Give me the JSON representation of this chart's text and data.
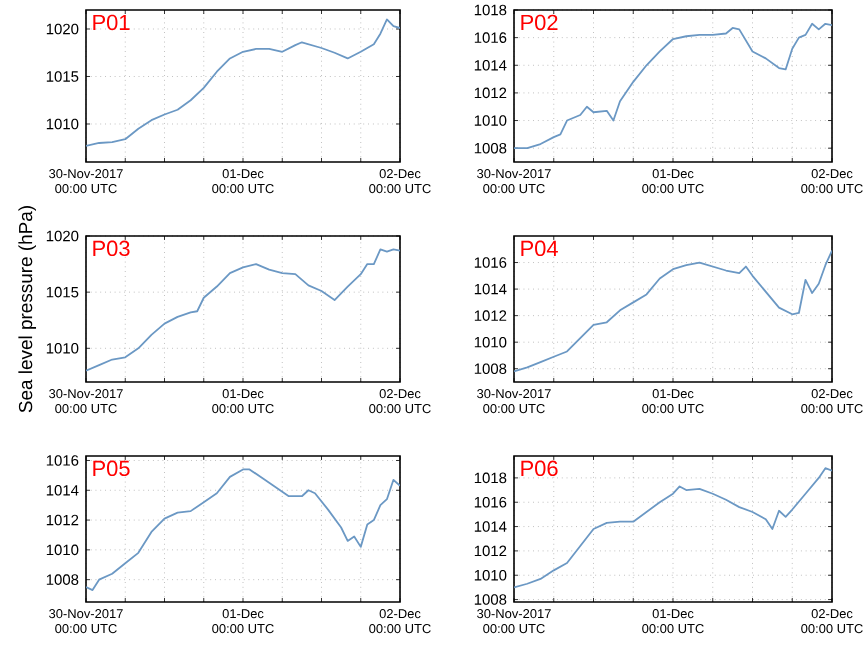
{
  "chart_data": [
    {
      "type": "line",
      "title": "P01",
      "xlim": [
        "2017-11-30T00:00",
        "2017-12-02T00:00"
      ],
      "ylim": [
        1006,
        1022
      ],
      "yticks": [
        1010,
        1015,
        1020
      ],
      "grid": true,
      "xticks": [
        {
          "value": "2017-11-30T00:00",
          "label": "30-Nov-2017\n00:00 UTC"
        },
        {
          "value": "2017-11-30T06:00",
          "label": null
        },
        {
          "value": "2017-11-30T12:00",
          "label": null
        },
        {
          "value": "2017-11-30T18:00",
          "label": null
        },
        {
          "value": "2017-12-01T00:00",
          "label": "01-Dec\n00:00 UTC"
        },
        {
          "value": "2017-12-01T06:00",
          "label": null
        },
        {
          "value": "2017-12-01T12:00",
          "label": null
        },
        {
          "value": "2017-12-01T18:00",
          "label": null
        },
        {
          "value": "2017-12-02T00:00",
          "label": "02-Dec\n00:00 UTC"
        }
      ],
      "x": [
        "2017-11-30T00:00",
        "2017-11-30T02:00",
        "2017-11-30T04:00",
        "2017-11-30T06:00",
        "2017-11-30T08:00",
        "2017-11-30T10:00",
        "2017-11-30T12:00",
        "2017-11-30T14:00",
        "2017-11-30T16:00",
        "2017-11-30T18:00",
        "2017-11-30T20:00",
        "2017-11-30T22:00",
        "2017-12-01T00:00",
        "2017-12-01T02:00",
        "2017-12-01T04:00",
        "2017-12-01T06:00",
        "2017-12-01T08:00",
        "2017-12-01T09:00",
        "2017-12-01T12:00",
        "2017-12-01T14:00",
        "2017-12-01T16:00",
        "2017-12-01T18:00",
        "2017-12-01T20:00",
        "2017-12-01T21:00",
        "2017-12-01T22:00",
        "2017-12-01T23:00",
        "2017-12-02T00:00"
      ],
      "series": [
        {
          "color": "#6b98c4",
          "values": [
            1007.7,
            1008.0,
            1008.1,
            1008.4,
            1009.5,
            1010.4,
            1011.0,
            1011.5,
            1012.5,
            1013.8,
            1015.5,
            1016.9,
            1017.6,
            1017.9,
            1017.9,
            1017.6,
            1018.3,
            1018.6,
            1018.0,
            1017.5,
            1016.9,
            1017.6,
            1018.4,
            1019.5,
            1021.0,
            1020.3,
            1020.1
          ]
        }
      ]
    },
    {
      "type": "line",
      "title": "P02",
      "xlim": [
        "2017-11-30T00:00",
        "2017-12-02T00:00"
      ],
      "ylim": [
        1007,
        1018
      ],
      "yticks": [
        1008,
        1010,
        1012,
        1014,
        1016,
        1018
      ],
      "grid": true,
      "xticks": [
        {
          "value": "2017-11-30T00:00",
          "label": "30-Nov-2017\n00:00 UTC"
        },
        {
          "value": "2017-11-30T06:00",
          "label": null
        },
        {
          "value": "2017-11-30T12:00",
          "label": null
        },
        {
          "value": "2017-11-30T18:00",
          "label": null
        },
        {
          "value": "2017-12-01T00:00",
          "label": "01-Dec\n00:00 UTC"
        },
        {
          "value": "2017-12-01T06:00",
          "label": null
        },
        {
          "value": "2017-12-01T12:00",
          "label": null
        },
        {
          "value": "2017-12-01T18:00",
          "label": null
        },
        {
          "value": "2017-12-02T00:00",
          "label": "02-Dec\n00:00 UTC"
        }
      ],
      "x": [
        "2017-11-30T00:00",
        "2017-11-30T02:00",
        "2017-11-30T04:00",
        "2017-11-30T06:00",
        "2017-11-30T07:00",
        "2017-11-30T08:00",
        "2017-11-30T10:00",
        "2017-11-30T11:00",
        "2017-11-30T12:00",
        "2017-11-30T14:00",
        "2017-11-30T15:00",
        "2017-11-30T16:00",
        "2017-11-30T18:00",
        "2017-11-30T20:00",
        "2017-11-30T22:00",
        "2017-12-01T00:00",
        "2017-12-01T02:00",
        "2017-12-01T04:00",
        "2017-12-01T06:00",
        "2017-12-01T08:00",
        "2017-12-01T09:00",
        "2017-12-01T10:00",
        "2017-12-01T12:00",
        "2017-12-01T14:00",
        "2017-12-01T16:00",
        "2017-12-01T17:00",
        "2017-12-01T18:00",
        "2017-12-01T19:00",
        "2017-12-01T20:00",
        "2017-12-01T21:00",
        "2017-12-01T22:00",
        "2017-12-01T23:00",
        "2017-12-02T00:00"
      ],
      "series": [
        {
          "color": "#6b98c4",
          "values": [
            1008.0,
            1008.0,
            1008.3,
            1008.8,
            1009.0,
            1010.0,
            1010.4,
            1011.0,
            1010.6,
            1010.7,
            1010.0,
            1011.4,
            1012.8,
            1014.0,
            1015.0,
            1015.9,
            1016.1,
            1016.2,
            1016.2,
            1016.3,
            1016.7,
            1016.6,
            1015.0,
            1014.5,
            1013.8,
            1013.7,
            1015.2,
            1016.0,
            1016.2,
            1017.0,
            1016.6,
            1017.0,
            1016.9
          ]
        }
      ]
    },
    {
      "type": "line",
      "title": "P03",
      "ylabel": "Sea level pressure (hPa)",
      "xlim": [
        "2017-11-30T00:00",
        "2017-12-02T00:00"
      ],
      "ylim": [
        1007,
        1020
      ],
      "yticks": [
        1010,
        1015,
        1020
      ],
      "grid": true,
      "xticks": [
        {
          "value": "2017-11-30T00:00",
          "label": "30-Nov-2017\n00:00 UTC"
        },
        {
          "value": "2017-11-30T06:00",
          "label": null
        },
        {
          "value": "2017-11-30T12:00",
          "label": null
        },
        {
          "value": "2017-11-30T18:00",
          "label": null
        },
        {
          "value": "2017-12-01T00:00",
          "label": "01-Dec\n00:00 UTC"
        },
        {
          "value": "2017-12-01T06:00",
          "label": null
        },
        {
          "value": "2017-12-01T12:00",
          "label": null
        },
        {
          "value": "2017-12-01T18:00",
          "label": null
        },
        {
          "value": "2017-12-02T00:00",
          "label": "02-Dec\n00:00 UTC"
        }
      ],
      "x": [
        "2017-11-30T00:00",
        "2017-11-30T02:00",
        "2017-11-30T04:00",
        "2017-11-30T06:00",
        "2017-11-30T08:00",
        "2017-11-30T10:00",
        "2017-11-30T12:00",
        "2017-11-30T14:00",
        "2017-11-30T16:00",
        "2017-11-30T17:00",
        "2017-11-30T18:00",
        "2017-11-30T20:00",
        "2017-11-30T22:00",
        "2017-12-01T00:00",
        "2017-12-01T02:00",
        "2017-12-01T04:00",
        "2017-12-01T06:00",
        "2017-12-01T08:00",
        "2017-12-01T10:00",
        "2017-12-01T12:00",
        "2017-12-01T14:00",
        "2017-12-01T16:00",
        "2017-12-01T18:00",
        "2017-12-01T19:00",
        "2017-12-01T20:00",
        "2017-12-01T21:00",
        "2017-12-01T22:00",
        "2017-12-01T23:00",
        "2017-12-02T00:00"
      ],
      "series": [
        {
          "color": "#6b98c4",
          "values": [
            1008.0,
            1008.5,
            1009.0,
            1009.2,
            1010.0,
            1011.2,
            1012.2,
            1012.8,
            1013.2,
            1013.3,
            1014.5,
            1015.5,
            1016.7,
            1017.2,
            1017.5,
            1017.0,
            1016.7,
            1016.6,
            1015.6,
            1015.1,
            1014.3,
            1015.5,
            1016.6,
            1017.5,
            1017.5,
            1018.8,
            1018.6,
            1018.8,
            1018.7
          ]
        }
      ]
    },
    {
      "type": "line",
      "title": "P04",
      "xlim": [
        "2017-11-30T00:00",
        "2017-12-02T00:00"
      ],
      "ylim": [
        1007,
        1018
      ],
      "yticks": [
        1008,
        1010,
        1012,
        1014,
        1016
      ],
      "grid": true,
      "xticks": [
        {
          "value": "2017-11-30T00:00",
          "label": "30-Nov-2017\n00:00 UTC"
        },
        {
          "value": "2017-11-30T06:00",
          "label": null
        },
        {
          "value": "2017-11-30T12:00",
          "label": null
        },
        {
          "value": "2017-11-30T18:00",
          "label": null
        },
        {
          "value": "2017-12-01T00:00",
          "label": "01-Dec\n00:00 UTC"
        },
        {
          "value": "2017-12-01T06:00",
          "label": null
        },
        {
          "value": "2017-12-01T12:00",
          "label": null
        },
        {
          "value": "2017-12-01T18:00",
          "label": null
        },
        {
          "value": "2017-12-02T00:00",
          "label": "02-Dec\n00:00 UTC"
        }
      ],
      "x": [
        "2017-11-30T00:00",
        "2017-11-30T02:00",
        "2017-11-30T04:00",
        "2017-11-30T06:00",
        "2017-11-30T08:00",
        "2017-11-30T10:00",
        "2017-11-30T12:00",
        "2017-11-30T14:00",
        "2017-11-30T16:00",
        "2017-11-30T18:00",
        "2017-11-30T20:00",
        "2017-11-30T22:00",
        "2017-12-01T00:00",
        "2017-12-01T02:00",
        "2017-12-01T04:00",
        "2017-12-01T06:00",
        "2017-12-01T08:00",
        "2017-12-01T10:00",
        "2017-12-01T11:00",
        "2017-12-01T12:00",
        "2017-12-01T14:00",
        "2017-12-01T16:00",
        "2017-12-01T18:00",
        "2017-12-01T19:00",
        "2017-12-01T20:00",
        "2017-12-01T21:00",
        "2017-12-01T22:00",
        "2017-12-01T23:00",
        "2017-12-02T00:00"
      ],
      "series": [
        {
          "color": "#6b98c4",
          "values": [
            1007.8,
            1008.1,
            1008.5,
            1008.9,
            1009.3,
            1010.3,
            1011.3,
            1011.5,
            1012.4,
            1013.0,
            1013.6,
            1014.8,
            1015.5,
            1015.8,
            1016.0,
            1015.7,
            1015.4,
            1015.2,
            1015.7,
            1015.0,
            1013.8,
            1012.6,
            1012.1,
            1012.2,
            1014.7,
            1013.7,
            1014.4,
            1015.8,
            1016.9
          ]
        }
      ]
    },
    {
      "type": "line",
      "title": "P05",
      "xlim": [
        "2017-11-30T00:00",
        "2017-12-02T00:00"
      ],
      "ylim": [
        1006.5,
        1016.3
      ],
      "yticks": [
        1008,
        1010,
        1012,
        1014,
        1016
      ],
      "grid": true,
      "xticks": [
        {
          "value": "2017-11-30T00:00",
          "label": "30-Nov-2017\n00:00 UTC"
        },
        {
          "value": "2017-11-30T06:00",
          "label": null
        },
        {
          "value": "2017-11-30T12:00",
          "label": null
        },
        {
          "value": "2017-11-30T18:00",
          "label": null
        },
        {
          "value": "2017-12-01T00:00",
          "label": "01-Dec\n00:00 UTC"
        },
        {
          "value": "2017-12-01T06:00",
          "label": null
        },
        {
          "value": "2017-12-01T12:00",
          "label": null
        },
        {
          "value": "2017-12-01T18:00",
          "label": null
        },
        {
          "value": "2017-12-02T00:00",
          "label": "02-Dec\n00:00 UTC"
        }
      ],
      "x": [
        "2017-11-30T00:00",
        "2017-11-30T01:00",
        "2017-11-30T02:00",
        "2017-11-30T04:00",
        "2017-11-30T06:00",
        "2017-11-30T08:00",
        "2017-11-30T10:00",
        "2017-11-30T12:00",
        "2017-11-30T14:00",
        "2017-11-30T16:00",
        "2017-11-30T18:00",
        "2017-11-30T20:00",
        "2017-11-30T22:00",
        "2017-12-01T00:00",
        "2017-12-01T01:00",
        "2017-12-01T03:00",
        "2017-12-01T05:00",
        "2017-12-01T07:00",
        "2017-12-01T09:00",
        "2017-12-01T10:00",
        "2017-12-01T11:00",
        "2017-12-01T13:00",
        "2017-12-01T15:00",
        "2017-12-01T16:00",
        "2017-12-01T17:00",
        "2017-12-01T18:00",
        "2017-12-01T19:00",
        "2017-12-01T20:00",
        "2017-12-01T21:00",
        "2017-12-01T22:00",
        "2017-12-01T23:00",
        "2017-12-02T00:00"
      ],
      "series": [
        {
          "color": "#6b98c4",
          "values": [
            1007.5,
            1007.3,
            1008.0,
            1008.4,
            1009.1,
            1009.8,
            1011.2,
            1012.1,
            1012.5,
            1012.6,
            1013.2,
            1013.8,
            1014.9,
            1015.4,
            1015.4,
            1014.8,
            1014.2,
            1013.6,
            1013.6,
            1014.0,
            1013.8,
            1012.7,
            1011.5,
            1010.6,
            1010.9,
            1010.2,
            1011.7,
            1012.0,
            1013.0,
            1013.4,
            1014.7,
            1014.3
          ]
        }
      ]
    },
    {
      "type": "line",
      "title": "P06",
      "xlim": [
        "2017-11-30T00:00",
        "2017-12-02T00:00"
      ],
      "ylim": [
        1007.8,
        1019.8
      ],
      "yticks": [
        1008,
        1010,
        1012,
        1014,
        1016,
        1018
      ],
      "grid": true,
      "xticks": [
        {
          "value": "2017-11-30T00:00",
          "label": "30-Nov-2017\n00:00 UTC"
        },
        {
          "value": "2017-11-30T06:00",
          "label": null
        },
        {
          "value": "2017-11-30T12:00",
          "label": null
        },
        {
          "value": "2017-11-30T18:00",
          "label": null
        },
        {
          "value": "2017-12-01T00:00",
          "label": "01-Dec\n00:00 UTC"
        },
        {
          "value": "2017-12-01T06:00",
          "label": null
        },
        {
          "value": "2017-12-01T12:00",
          "label": null
        },
        {
          "value": "2017-12-01T18:00",
          "label": null
        },
        {
          "value": "2017-12-02T00:00",
          "label": "02-Dec\n00:00 UTC"
        }
      ],
      "x": [
        "2017-11-30T00:00",
        "2017-11-30T02:00",
        "2017-11-30T04:00",
        "2017-11-30T06:00",
        "2017-11-30T08:00",
        "2017-11-30T10:00",
        "2017-11-30T12:00",
        "2017-11-30T14:00",
        "2017-11-30T16:00",
        "2017-11-30T18:00",
        "2017-11-30T20:00",
        "2017-11-30T22:00",
        "2017-12-01T00:00",
        "2017-12-01T01:00",
        "2017-12-01T02:00",
        "2017-12-01T04:00",
        "2017-12-01T06:00",
        "2017-12-01T08:00",
        "2017-12-01T10:00",
        "2017-12-01T12:00",
        "2017-12-01T14:00",
        "2017-12-01T15:00",
        "2017-12-01T16:00",
        "2017-12-01T17:00",
        "2017-12-01T18:00",
        "2017-12-01T20:00",
        "2017-12-01T22:00",
        "2017-12-01T23:00",
        "2017-12-02T00:00"
      ],
      "series": [
        {
          "color": "#6b98c4",
          "values": [
            1009.0,
            1009.3,
            1009.7,
            1010.4,
            1011.0,
            1012.4,
            1013.8,
            1014.3,
            1014.4,
            1014.4,
            1015.2,
            1016.0,
            1016.7,
            1017.3,
            1017.0,
            1017.1,
            1016.7,
            1016.2,
            1015.6,
            1015.2,
            1014.6,
            1013.8,
            1015.3,
            1014.8,
            1015.4,
            1016.7,
            1018.0,
            1018.8,
            1018.6
          ]
        }
      ]
    }
  ]
}
